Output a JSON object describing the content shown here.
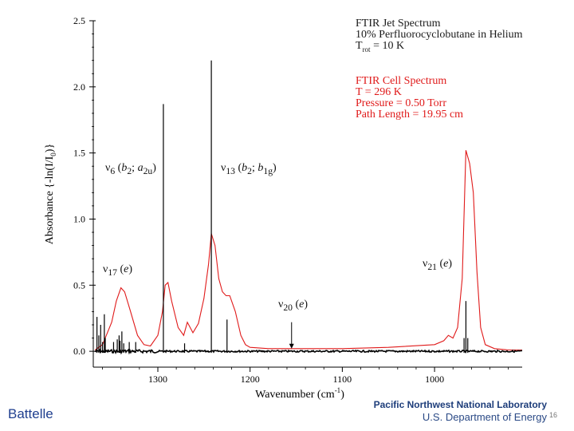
{
  "chart_data": {
    "type": "line",
    "xlabel": "Wavenumber (cm",
    "xlabel_sup": "-1",
    "xlabel_end": ")",
    "ylabel": "Absorbance {-ln(I/I",
    "ylabel_sub": "0",
    "ylabel_end": ")}",
    "xlim": [
      1370,
      905
    ],
    "ylim": [
      -0.12,
      2.5
    ],
    "x_ticks": [
      1300,
      1200,
      1100,
      1000
    ],
    "x_tick_labels": [
      "1300",
      "1200",
      "1100",
      "1000"
    ],
    "y_ticks": [
      0.0,
      0.5,
      1.0,
      1.5,
      2.0,
      2.5
    ],
    "y_tick_labels": [
      "0.0",
      "0.5",
      "1.0",
      "1.5",
      "2.0",
      "2.5"
    ],
    "series": [
      {
        "name": "FTIR Jet Spectrum",
        "color": "#000000",
        "baseline": 0.0,
        "x": [
          1366,
          1364,
          1362,
          1360,
          1358,
          1357,
          1348,
          1344,
          1342,
          1341,
          1339,
          1337,
          1331,
          1324,
          1300,
          1294,
          1290,
          1271,
          1242,
          1225,
          1190,
          1160,
          1100,
          1000,
          968,
          966,
          964,
          905
        ],
        "values": [
          0.26,
          0.12,
          0.2,
          0.07,
          0.28,
          0.1,
          0.07,
          0.09,
          0.12,
          0.08,
          0.15,
          0.06,
          0.07,
          0.07,
          0.05,
          1.87,
          0.04,
          0.06,
          2.2,
          0.24,
          0.03,
          0.02,
          0.02,
          0.02,
          0.1,
          0.38,
          0.1,
          0.0
        ]
      },
      {
        "name": "FTIR Cell Spectrum",
        "color": "#e01a1a",
        "x": [
          1368,
          1360,
          1350,
          1345,
          1340,
          1336,
          1330,
          1322,
          1315,
          1308,
          1300,
          1295,
          1292,
          1289,
          1285,
          1278,
          1272,
          1268,
          1262,
          1256,
          1250,
          1245,
          1242,
          1238,
          1234,
          1230,
          1226,
          1222,
          1216,
          1210,
          1205,
          1200,
          1180,
          1150,
          1100,
          1050,
          1000,
          990,
          985,
          980,
          975,
          970,
          966,
          962,
          958,
          954,
          950,
          945,
          935,
          920,
          905
        ],
        "values": [
          0.01,
          0.05,
          0.22,
          0.38,
          0.48,
          0.45,
          0.31,
          0.12,
          0.05,
          0.04,
          0.12,
          0.3,
          0.5,
          0.52,
          0.38,
          0.18,
          0.12,
          0.22,
          0.14,
          0.21,
          0.4,
          0.66,
          0.89,
          0.8,
          0.55,
          0.45,
          0.42,
          0.42,
          0.3,
          0.12,
          0.05,
          0.03,
          0.02,
          0.02,
          0.02,
          0.03,
          0.05,
          0.08,
          0.12,
          0.1,
          0.18,
          0.55,
          1.52,
          1.42,
          1.2,
          0.6,
          0.18,
          0.05,
          0.02,
          0.01,
          0.01
        ]
      }
    ],
    "legend": {
      "jet": [
        "FTIR Jet Spectrum",
        "10% Perfluorocyclobutane in Helium"
      ],
      "jet_trot": {
        "prefix": "T",
        "sub": "rot",
        "suffix": " = 10 K"
      },
      "cell": [
        "FTIR Cell Spectrum",
        "T = 296 K",
        "Pressure = 0.50 Torr",
        "Path Length = 19.95 cm"
      ]
    },
    "peak_labels": {
      "v6": {
        "sym": "ν",
        "sub": "6",
        "open": " (",
        "i1": "b",
        "i1sub": "2",
        "sep": "; ",
        "i2": "a",
        "i2sub": "2u",
        "close": ")"
      },
      "v13": {
        "sym": "ν",
        "sub": "13",
        "open": " (",
        "i1": "b",
        "i1sub": "2",
        "sep": "; ",
        "i2": "b",
        "i2sub": "1g",
        "close": ")"
      },
      "v17": {
        "sym": "ν",
        "sub": "17",
        "open": " (",
        "i1": "e",
        "close": ")"
      },
      "v20": {
        "sym": "ν",
        "sub": "20",
        "open": " (",
        "i1": "e",
        "close": ")"
      },
      "v21": {
        "sym": "ν",
        "sub": "21",
        "open": " (",
        "i1": "e",
        "close": ")"
      }
    },
    "arrow_at": {
      "x": 1155,
      "y_from": 0.22,
      "y_to": 0.02
    }
  },
  "footer": {
    "battelle": "Battelle",
    "lab_name": "Pacific Northwest National Laboratory",
    "doe": "U.S. Department of Energy",
    "page": "16"
  }
}
